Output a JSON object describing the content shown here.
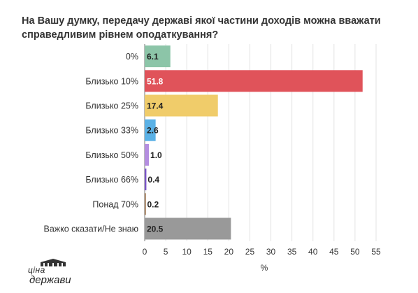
{
  "title": "На Вашу думку, передачу державі якої частини доходів можна вважати справедливим рівнем оподаткування?",
  "logo": {
    "text_top": "ціна",
    "text_bottom": "держави",
    "icon": "building-icon"
  },
  "chart_data": {
    "type": "bar",
    "orientation": "horizontal",
    "categories": [
      "0%",
      "Близько 10%",
      "Близько 25%",
      "Близько 33%",
      "Близько 50%",
      "Близько 66%",
      "Понад 70%",
      "Важко сказати/Не знаю"
    ],
    "values": [
      6.1,
      51.8,
      17.4,
      2.6,
      1.0,
      0.4,
      0.2,
      20.5
    ],
    "value_labels": [
      "6.1",
      "51.8",
      "17.4",
      "2.6",
      "1.0",
      "0.4",
      "0.2",
      "20.5"
    ],
    "colors": [
      "#8cc5a8",
      "#e0535a",
      "#f0cc6a",
      "#5ab1e6",
      "#b48ee0",
      "#7a55c8",
      "#8a5a2e",
      "#999999"
    ],
    "xlabel": "%",
    "xlim": [
      0,
      55
    ],
    "xticks": [
      "0",
      "5",
      "10",
      "15",
      "20",
      "25",
      "30",
      "35",
      "40",
      "45",
      "50",
      "55"
    ],
    "grid": true
  }
}
